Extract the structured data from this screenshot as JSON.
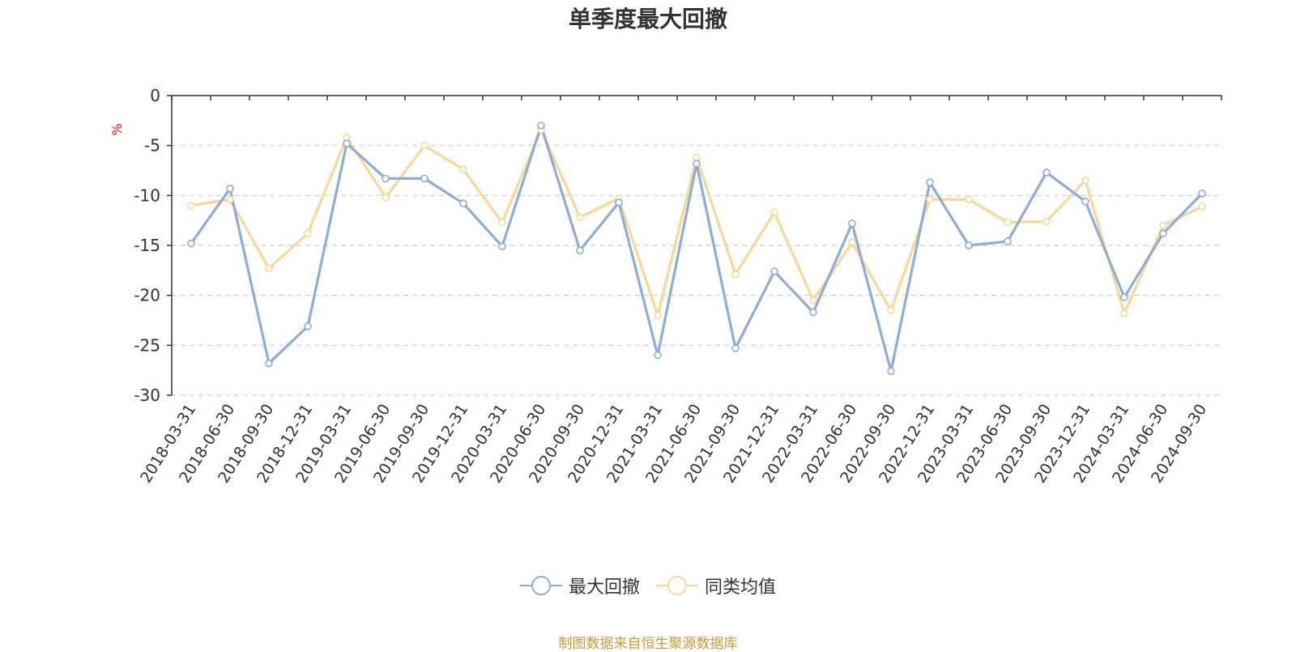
{
  "colors": {
    "series1": "#8eacd6",
    "series2": "#f8d79a",
    "unit": "#e01010",
    "source": "#c89a3a",
    "axis": "#333333",
    "grid": "#cccccc"
  },
  "chart_data": {
    "type": "line",
    "title": "单季度最大回撤",
    "ylabel": "%",
    "ylim": [
      -30,
      0
    ],
    "yticks": [
      0,
      -5,
      -10,
      -15,
      -20,
      -25,
      -30
    ],
    "grid": "horizontal dashed",
    "legend_position": "bottom-center",
    "categories": [
      "2018-03-31",
      "2018-06-30",
      "2018-09-30",
      "2018-12-31",
      "2019-03-31",
      "2019-06-30",
      "2019-09-30",
      "2019-12-31",
      "2020-03-31",
      "2020-06-30",
      "2020-09-30",
      "2020-12-31",
      "2021-03-31",
      "2021-06-30",
      "2021-09-30",
      "2021-12-31",
      "2022-03-31",
      "2022-06-30",
      "2022-09-30",
      "2022-12-31",
      "2023-03-31",
      "2023-06-30",
      "2023-09-30",
      "2023-12-31",
      "2024-03-31",
      "2024-06-30",
      "2024-09-30"
    ],
    "series": [
      {
        "name": "最大回撤",
        "values": [
          -14.8,
          -9.3,
          -26.8,
          -23.1,
          -4.8,
          -8.3,
          -8.3,
          -10.8,
          -15.1,
          -3.0,
          -15.5,
          -10.7,
          -26.0,
          -6.8,
          -25.3,
          -17.6,
          -21.7,
          -12.8,
          -27.6,
          -8.7,
          -15.0,
          -14.6,
          -7.7,
          -10.6,
          -20.2,
          -13.8,
          -9.8
        ]
      },
      {
        "name": "同类均值",
        "values": [
          -11.0,
          -10.4,
          -17.3,
          -13.8,
          -4.2,
          -10.2,
          -5.0,
          -7.4,
          -12.7,
          -3.4,
          -12.2,
          -10.3,
          -22.0,
          -6.2,
          -17.9,
          -11.7,
          -20.5,
          -14.7,
          -21.5,
          -10.4,
          -10.4,
          -12.7,
          -12.6,
          -8.5,
          -21.8,
          -13.0,
          -11.1
        ]
      }
    ],
    "source_note": "制图数据来自恒生聚源数据库"
  }
}
